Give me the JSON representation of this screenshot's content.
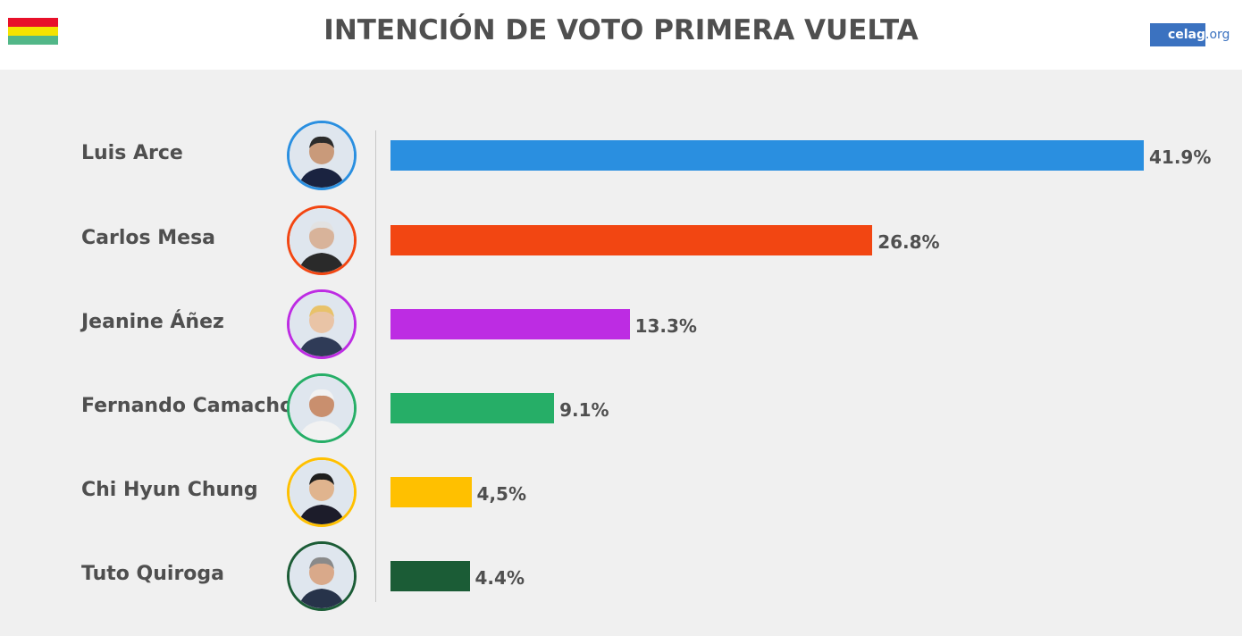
{
  "header": {
    "title": "INTENCIÓN DE VOTO PRIMERA VUELTA",
    "logo_main": "celag",
    "logo_suffix": ".org",
    "flag_colors": [
      "#e8102a",
      "#f5e300",
      "#52b788"
    ]
  },
  "chart_data": {
    "type": "bar",
    "orientation": "horizontal",
    "title": "INTENCIÓN DE VOTO PRIMERA VUELTA",
    "xlabel": "",
    "ylabel": "",
    "xlim": [
      0,
      41.9
    ],
    "categories": [
      "Luis Arce",
      "Carlos Mesa",
      "Jeanine Áñez",
      "Fernando Camacho",
      "Chi Hyun Chung",
      "Tuto Quiroga"
    ],
    "values": [
      41.9,
      26.8,
      13.3,
      9.1,
      4.5,
      4.4
    ],
    "labels": [
      "41.9%",
      "26.8%",
      "13.3%",
      "9.1%",
      "4,5%",
      "4.4%"
    ],
    "colors": [
      "#2a8fe0",
      "#f24612",
      "#bd2ce3",
      "#26ae67",
      "#ffc000",
      "#1b5c36"
    ],
    "icons": [
      "candidate-photo",
      "candidate-photo",
      "candidate-photo",
      "candidate-photo",
      "candidate-photo",
      "candidate-photo"
    ],
    "grid": false,
    "legend": "none"
  }
}
